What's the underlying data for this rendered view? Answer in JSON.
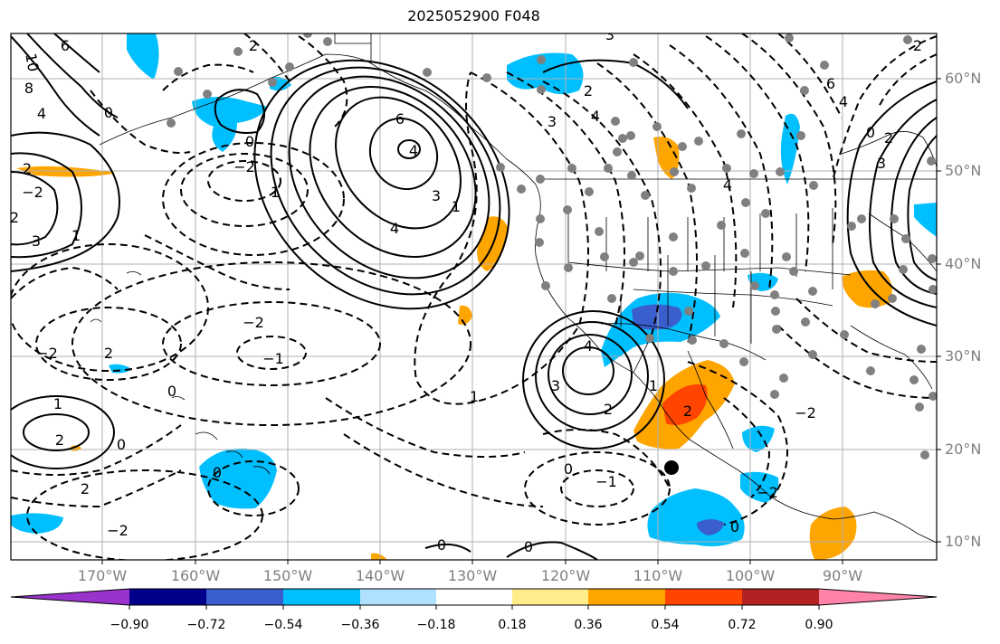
{
  "title": "2025052900 F048",
  "lat_labels": [
    "60°N",
    "50°N",
    "40°N",
    "30°N",
    "20°N",
    "10°N"
  ],
  "lon_labels": [
    "170°W",
    "160°W",
    "150°W",
    "140°W",
    "130°W",
    "120°W",
    "110°W",
    "100°W",
    "90°W"
  ],
  "colorbar": {
    "colors": [
      "#9933cc",
      "#00008b",
      "#3a5fcd",
      "#00bfff",
      "#b0e2ff",
      "#ffffff",
      "#ffec8b",
      "#ffa500",
      "#ff4500",
      "#b22222",
      "#ff83a8"
    ],
    "tick_labels": [
      "−0.90",
      "−0.72",
      "−0.54",
      "−0.36",
      "−0.18",
      "0.18",
      "0.36",
      "0.54",
      "0.72",
      "0.90"
    ]
  },
  "contour_labels": [
    "10",
    "8",
    "6",
    "4",
    "2",
    "0",
    "2",
    "3",
    "1",
    "−2",
    "6",
    "4",
    "2",
    "−2",
    "0",
    "3",
    "4",
    "1",
    "−2",
    "−1",
    "0",
    "−2",
    "1",
    "2",
    "2",
    "2",
    "4",
    "3",
    "0",
    "−2",
    "2",
    "1",
    "1",
    "−1",
    "0",
    "0",
    "0",
    "0",
    "6",
    "4",
    "2",
    "0",
    "3",
    "2",
    "−2",
    "0",
    "−2",
    "3",
    "4",
    "2",
    "1",
    "3",
    "2",
    "4"
  ],
  "colors": {
    "gridline": "#b0b0b0",
    "tick_label": "#7f7f7f",
    "station_dot": "#808080",
    "center_marker": "#000000"
  }
}
